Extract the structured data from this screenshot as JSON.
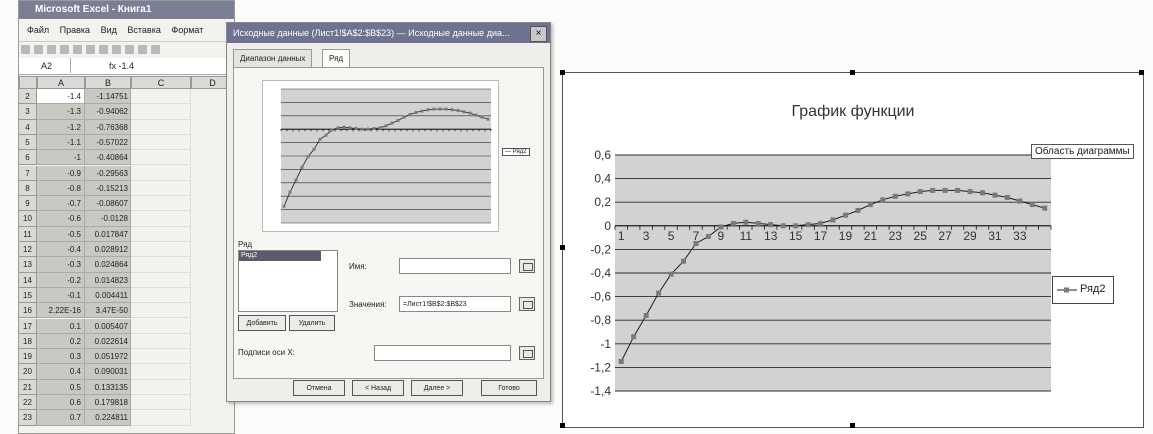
{
  "excel": {
    "title": "Microsoft Excel - Книга1",
    "menu": [
      "Файл",
      "Правка",
      "Вид",
      "Вставка",
      "Формат"
    ],
    "name_box": "A2",
    "formula": "fx -1.4",
    "columns": [
      "A",
      "B",
      "C",
      "D"
    ],
    "rows": [
      {
        "n": "2",
        "a": "-1.4",
        "b": "-1.14751"
      },
      {
        "n": "3",
        "a": "-1.3",
        "b": "-0.94062"
      },
      {
        "n": "4",
        "a": "-1.2",
        "b": "-0.76368"
      },
      {
        "n": "5",
        "a": "-1.1",
        "b": "-0.57022"
      },
      {
        "n": "6",
        "a": "-1",
        "b": "-0.40864"
      },
      {
        "n": "7",
        "a": "-0.9",
        "b": "-0.29563"
      },
      {
        "n": "8",
        "a": "-0.8",
        "b": "-0.15213"
      },
      {
        "n": "9",
        "a": "-0.7",
        "b": "-0.08607"
      },
      {
        "n": "10",
        "a": "-0.6",
        "b": "-0.0128"
      },
      {
        "n": "11",
        "a": "-0.5",
        "b": "0.017847"
      },
      {
        "n": "12",
        "a": "-0.4",
        "b": "0.028912"
      },
      {
        "n": "13",
        "a": "-0.3",
        "b": "0.024864"
      },
      {
        "n": "14",
        "a": "-0.2",
        "b": "0.014823"
      },
      {
        "n": "15",
        "a": "-0.1",
        "b": "0.004411"
      },
      {
        "n": "16",
        "a": "2.22E-16",
        "b": "3.47E-50"
      },
      {
        "n": "17",
        "a": "0.1",
        "b": "0.005407"
      },
      {
        "n": "18",
        "a": "0.2",
        "b": "0.022614"
      },
      {
        "n": "19",
        "a": "0.3",
        "b": "0.051972"
      },
      {
        "n": "20",
        "a": "0.4",
        "b": "0.090031"
      },
      {
        "n": "21",
        "a": "0.5",
        "b": "0.133135"
      },
      {
        "n": "22",
        "a": "0.6",
        "b": "0.179818"
      },
      {
        "n": "23",
        "a": "0.7",
        "b": "0.224811"
      }
    ]
  },
  "dialog": {
    "title": "Исходные данные (Лист1!$A$2:$B$23) — Исходные данные диа...",
    "close": "×",
    "tabs": [
      "Диапазон данных",
      "Ряд"
    ],
    "preview_legend": "— Ряд2",
    "series_label": "Ряд",
    "series_items": [
      "Ряд2"
    ],
    "name_label": "Имя:",
    "name_value": "",
    "values_label": "Значения:",
    "values_value": "=Лист1!$B$2:$B$23",
    "add_button": "Добавить",
    "remove_button": "Удалить",
    "xlabels_label": "Подписи оси X:",
    "xlabels_value": "",
    "buttons": [
      "Отмена",
      "< Назад",
      "Далее >",
      "Готово"
    ]
  },
  "chart": {
    "tooltip": "Область диаграммы",
    "legend": "Ряд2",
    "colors": {
      "plot_bg": "#d2d2d0",
      "line": "#1c1c1c",
      "marker": "#7a7a7a"
    }
  },
  "chart_data": {
    "type": "line",
    "title": "График функции",
    "categories": [
      "1",
      "2",
      "3",
      "4",
      "5",
      "6",
      "7",
      "8",
      "9",
      "10",
      "11",
      "12",
      "13",
      "14",
      "15",
      "16",
      "17",
      "18",
      "19",
      "20",
      "21",
      "22",
      "23",
      "24",
      "25",
      "26",
      "27",
      "28",
      "29",
      "30",
      "31",
      "32",
      "33",
      "34",
      "35"
    ],
    "x_tick_labels": [
      "1",
      "3",
      "5",
      "7",
      "9",
      "11",
      "13",
      "15",
      "17",
      "19",
      "21",
      "23",
      "25",
      "27",
      "29",
      "31",
      "33"
    ],
    "y_tick_labels": [
      "0,6",
      "0,4",
      "0,2",
      "0",
      "-0,2",
      "-0,4",
      "-0,6",
      "-0,8",
      "-1",
      "-1,2",
      "-1,4"
    ],
    "ylim": [
      -1.4,
      0.6
    ],
    "grid": true,
    "legend_position": "right",
    "series": [
      {
        "name": "Ряд2",
        "values": [
          -1.15,
          -0.94,
          -0.76,
          -0.57,
          -0.41,
          -0.3,
          -0.15,
          -0.09,
          -0.01,
          0.02,
          0.03,
          0.02,
          0.01,
          0.0,
          0.0,
          0.01,
          0.02,
          0.05,
          0.09,
          0.13,
          0.18,
          0.22,
          0.25,
          0.27,
          0.29,
          0.3,
          0.3,
          0.3,
          0.29,
          0.28,
          0.26,
          0.24,
          0.21,
          0.18,
          0.15
        ]
      }
    ]
  }
}
